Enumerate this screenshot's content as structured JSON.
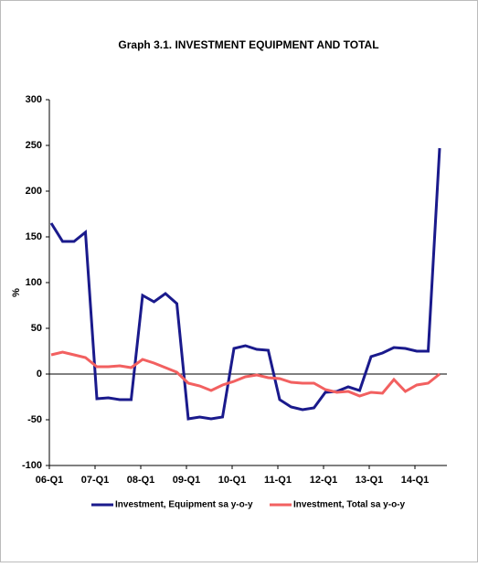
{
  "chart_data": {
    "type": "line",
    "title": "Graph 3.1. INVESTMENT EQUIPMENT AND TOTAL",
    "y_label": "%",
    "categories": [
      "06-Q1",
      null,
      null,
      null,
      "07-Q1",
      null,
      null,
      null,
      "08-Q1",
      null,
      null,
      null,
      "09-Q1",
      null,
      null,
      null,
      "10-Q1",
      null,
      null,
      null,
      "11-Q1",
      null,
      null,
      null,
      "12-Q1",
      null,
      null,
      null,
      "13-Q1",
      null,
      null,
      null,
      "14-Q1",
      null,
      null
    ],
    "series": [
      {
        "name": "Investment, Equipment sa y-o-y",
        "color": "#1a1a8c",
        "values": [
          165,
          145,
          145,
          155,
          -27,
          -26,
          -28,
          -28,
          86,
          79,
          88,
          77,
          -49,
          -47,
          -49,
          -47,
          28,
          31,
          27,
          26,
          -28,
          -36,
          -39,
          -37,
          -20,
          -19,
          -14,
          -18,
          19,
          23,
          29,
          28,
          25,
          25,
          247
        ]
      },
      {
        "name": "Investment, Total sa y-o-y",
        "color": "#f26060",
        "values": [
          21,
          24,
          21,
          18,
          8,
          8,
          9,
          7,
          16,
          12,
          7,
          2,
          -10,
          -13,
          -18,
          -12,
          -8,
          -3,
          -1,
          -4,
          -5,
          -9,
          -10,
          -10,
          -17,
          -20,
          -19,
          -24,
          -20,
          -21,
          -6,
          -19,
          -12,
          -10,
          0
        ]
      }
    ],
    "ylim": [
      -100,
      300
    ],
    "yticks": [
      -100,
      -50,
      0,
      50,
      100,
      150,
      200,
      250,
      300
    ],
    "legend": "bottom"
  }
}
